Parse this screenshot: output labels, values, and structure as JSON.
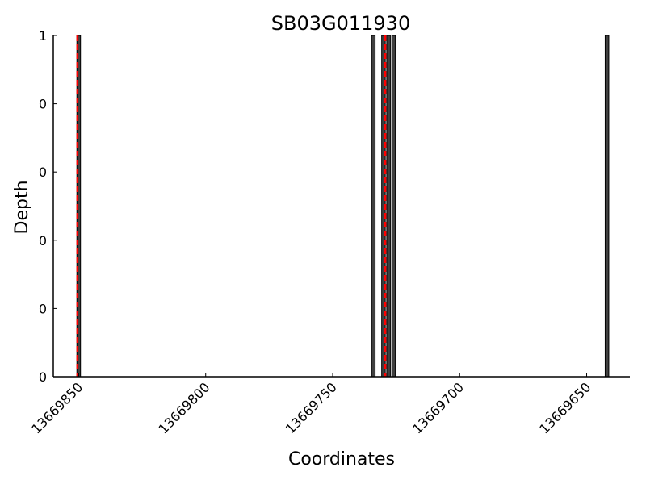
{
  "chart_data": {
    "type": "bar",
    "title": "SB03G011930",
    "xlabel": "Coordinates",
    "ylabel": "Depth",
    "xlim": [
      13669860,
      13669633
    ],
    "ylim": [
      0,
      1
    ],
    "x_reversed": true,
    "x_ticks": [
      13669850,
      13669800,
      13669750,
      13669700,
      13669650
    ],
    "x_tick_labels": [
      "13669850",
      "13669800",
      "13669750",
      "13669700",
      "13669650"
    ],
    "y_ticks": [
      0,
      0.2,
      0.4,
      0.6,
      0.8,
      1.0
    ],
    "y_tick_labels": [
      "0",
      "0",
      "0",
      "0",
      "0",
      "1"
    ],
    "bars": [
      {
        "x": 13669850,
        "value": 1
      },
      {
        "x": 13669734,
        "value": 1
      },
      {
        "x": 13669730,
        "value": 1
      },
      {
        "x": 13669728,
        "value": 1
      },
      {
        "x": 13669726,
        "value": 1
      },
      {
        "x": 13669642,
        "value": 1
      }
    ],
    "markers": [
      {
        "x": 13669850.5,
        "color": "#ff0000",
        "style": "dashed"
      },
      {
        "x": 13669729.3,
        "color": "#ff0000",
        "style": "dashed"
      }
    ],
    "bar_color": "#404040",
    "bar_edge_color": "#000000",
    "grid": false,
    "legend": "none"
  }
}
